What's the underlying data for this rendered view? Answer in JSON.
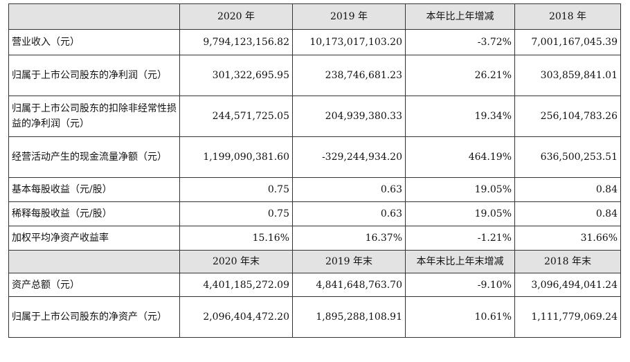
{
  "header1": [
    "2020 年",
    "2019 年",
    "本年比上年增减",
    "2018 年"
  ],
  "rows1": [
    {
      "label": "营业收入（元）",
      "v": [
        "9,794,123,156.82",
        "10,173,017,103.20",
        "-3.72%",
        "7,001,167,045.39"
      ]
    },
    {
      "label": "归属于上市公司股东的净利润（元）",
      "v": [
        "301,322,695.95",
        "238,746,681.23",
        "26.21%",
        "303,859,841.01"
      ]
    },
    {
      "label": "归属于上市公司股东的扣除非经常性损益的净利润（元）",
      "v": [
        "244,571,725.05",
        "204,939,380.33",
        "19.34%",
        "256,104,783.26"
      ]
    },
    {
      "label": "经营活动产生的现金流量净额（元）",
      "v": [
        "1,199,090,381.60",
        "-329,244,934.20",
        "464.19%",
        "636,500,253.51"
      ]
    },
    {
      "label": "基本每股收益（元/股）",
      "v": [
        "0.75",
        "0.63",
        "19.05%",
        "0.84"
      ]
    },
    {
      "label": "稀释每股收益（元/股）",
      "v": [
        "0.75",
        "0.63",
        "19.05%",
        "0.84"
      ]
    },
    {
      "label": "加权平均净资产收益率",
      "v": [
        "15.16%",
        "16.37%",
        "-1.21%",
        "31.66%"
      ]
    }
  ],
  "header2": [
    "2020 年末",
    "2019 年末",
    "本年末比上年末增减",
    "2018 年末"
  ],
  "rows2": [
    {
      "label": "资产总额（元）",
      "v": [
        "4,401,185,272.09",
        "4,841,648,763.70",
        "-9.10%",
        "3,096,494,041.24"
      ]
    },
    {
      "label": "归属于上市公司股东的净资产（元）",
      "v": [
        "2,096,404,472.20",
        "1,895,288,108.91",
        "10.61%",
        "1,111,779,069.24"
      ]
    }
  ]
}
